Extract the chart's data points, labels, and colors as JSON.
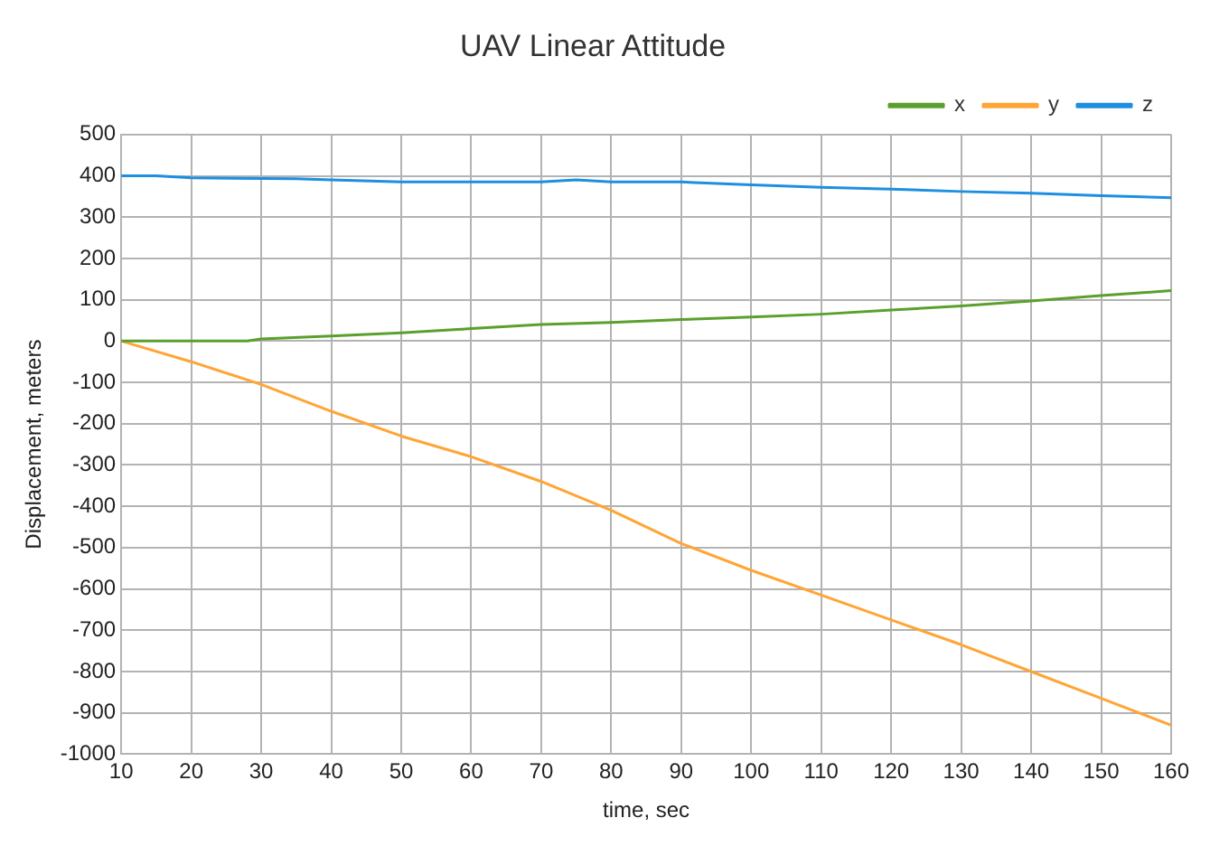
{
  "chart_data": {
    "type": "line",
    "title": "UAV Linear Attitude",
    "xlabel": "time, sec",
    "ylabel": "Displacement, meters",
    "xlim": [
      10,
      160
    ],
    "xticks": [
      10,
      20,
      30,
      40,
      50,
      60,
      70,
      80,
      90,
      100,
      110,
      120,
      130,
      140,
      150,
      160
    ],
    "ylim": [
      -1000,
      500
    ],
    "yticks": [
      -1000,
      -900,
      -800,
      -700,
      -600,
      -500,
      -400,
      -300,
      -200,
      -100,
      0,
      100,
      200,
      300,
      400,
      500
    ],
    "grid": true,
    "legend": "top right",
    "marker": "none",
    "line_style": "solid",
    "series": [
      {
        "name": "x",
        "color": "#5aa02c",
        "x": [
          10,
          20,
          28,
          30,
          40,
          50,
          60,
          70,
          80,
          90,
          100,
          110,
          120,
          130,
          140,
          150,
          160
        ],
        "values": [
          0,
          0,
          0,
          5,
          12,
          20,
          30,
          40,
          45,
          52,
          58,
          65,
          75,
          85,
          97,
          110,
          122
        ]
      },
      {
        "name": "y",
        "color": "#ffa535",
        "x": [
          10,
          20,
          30,
          40,
          50,
          60,
          70,
          80,
          90,
          100,
          110,
          120,
          130,
          140,
          150,
          160
        ],
        "values": [
          0,
          -50,
          -105,
          -170,
          -230,
          -280,
          -340,
          -410,
          -490,
          -555,
          -615,
          -675,
          -735,
          -800,
          -865,
          -930
        ]
      },
      {
        "name": "z",
        "color": "#1e8fe0",
        "x": [
          10,
          15,
          20,
          35,
          40,
          50,
          70,
          75,
          80,
          90,
          100,
          110,
          120,
          130,
          140,
          150,
          160
        ],
        "values": [
          400,
          400,
          395,
          393,
          390,
          385,
          385,
          390,
          385,
          385,
          378,
          372,
          368,
          362,
          358,
          352,
          347
        ]
      }
    ]
  }
}
